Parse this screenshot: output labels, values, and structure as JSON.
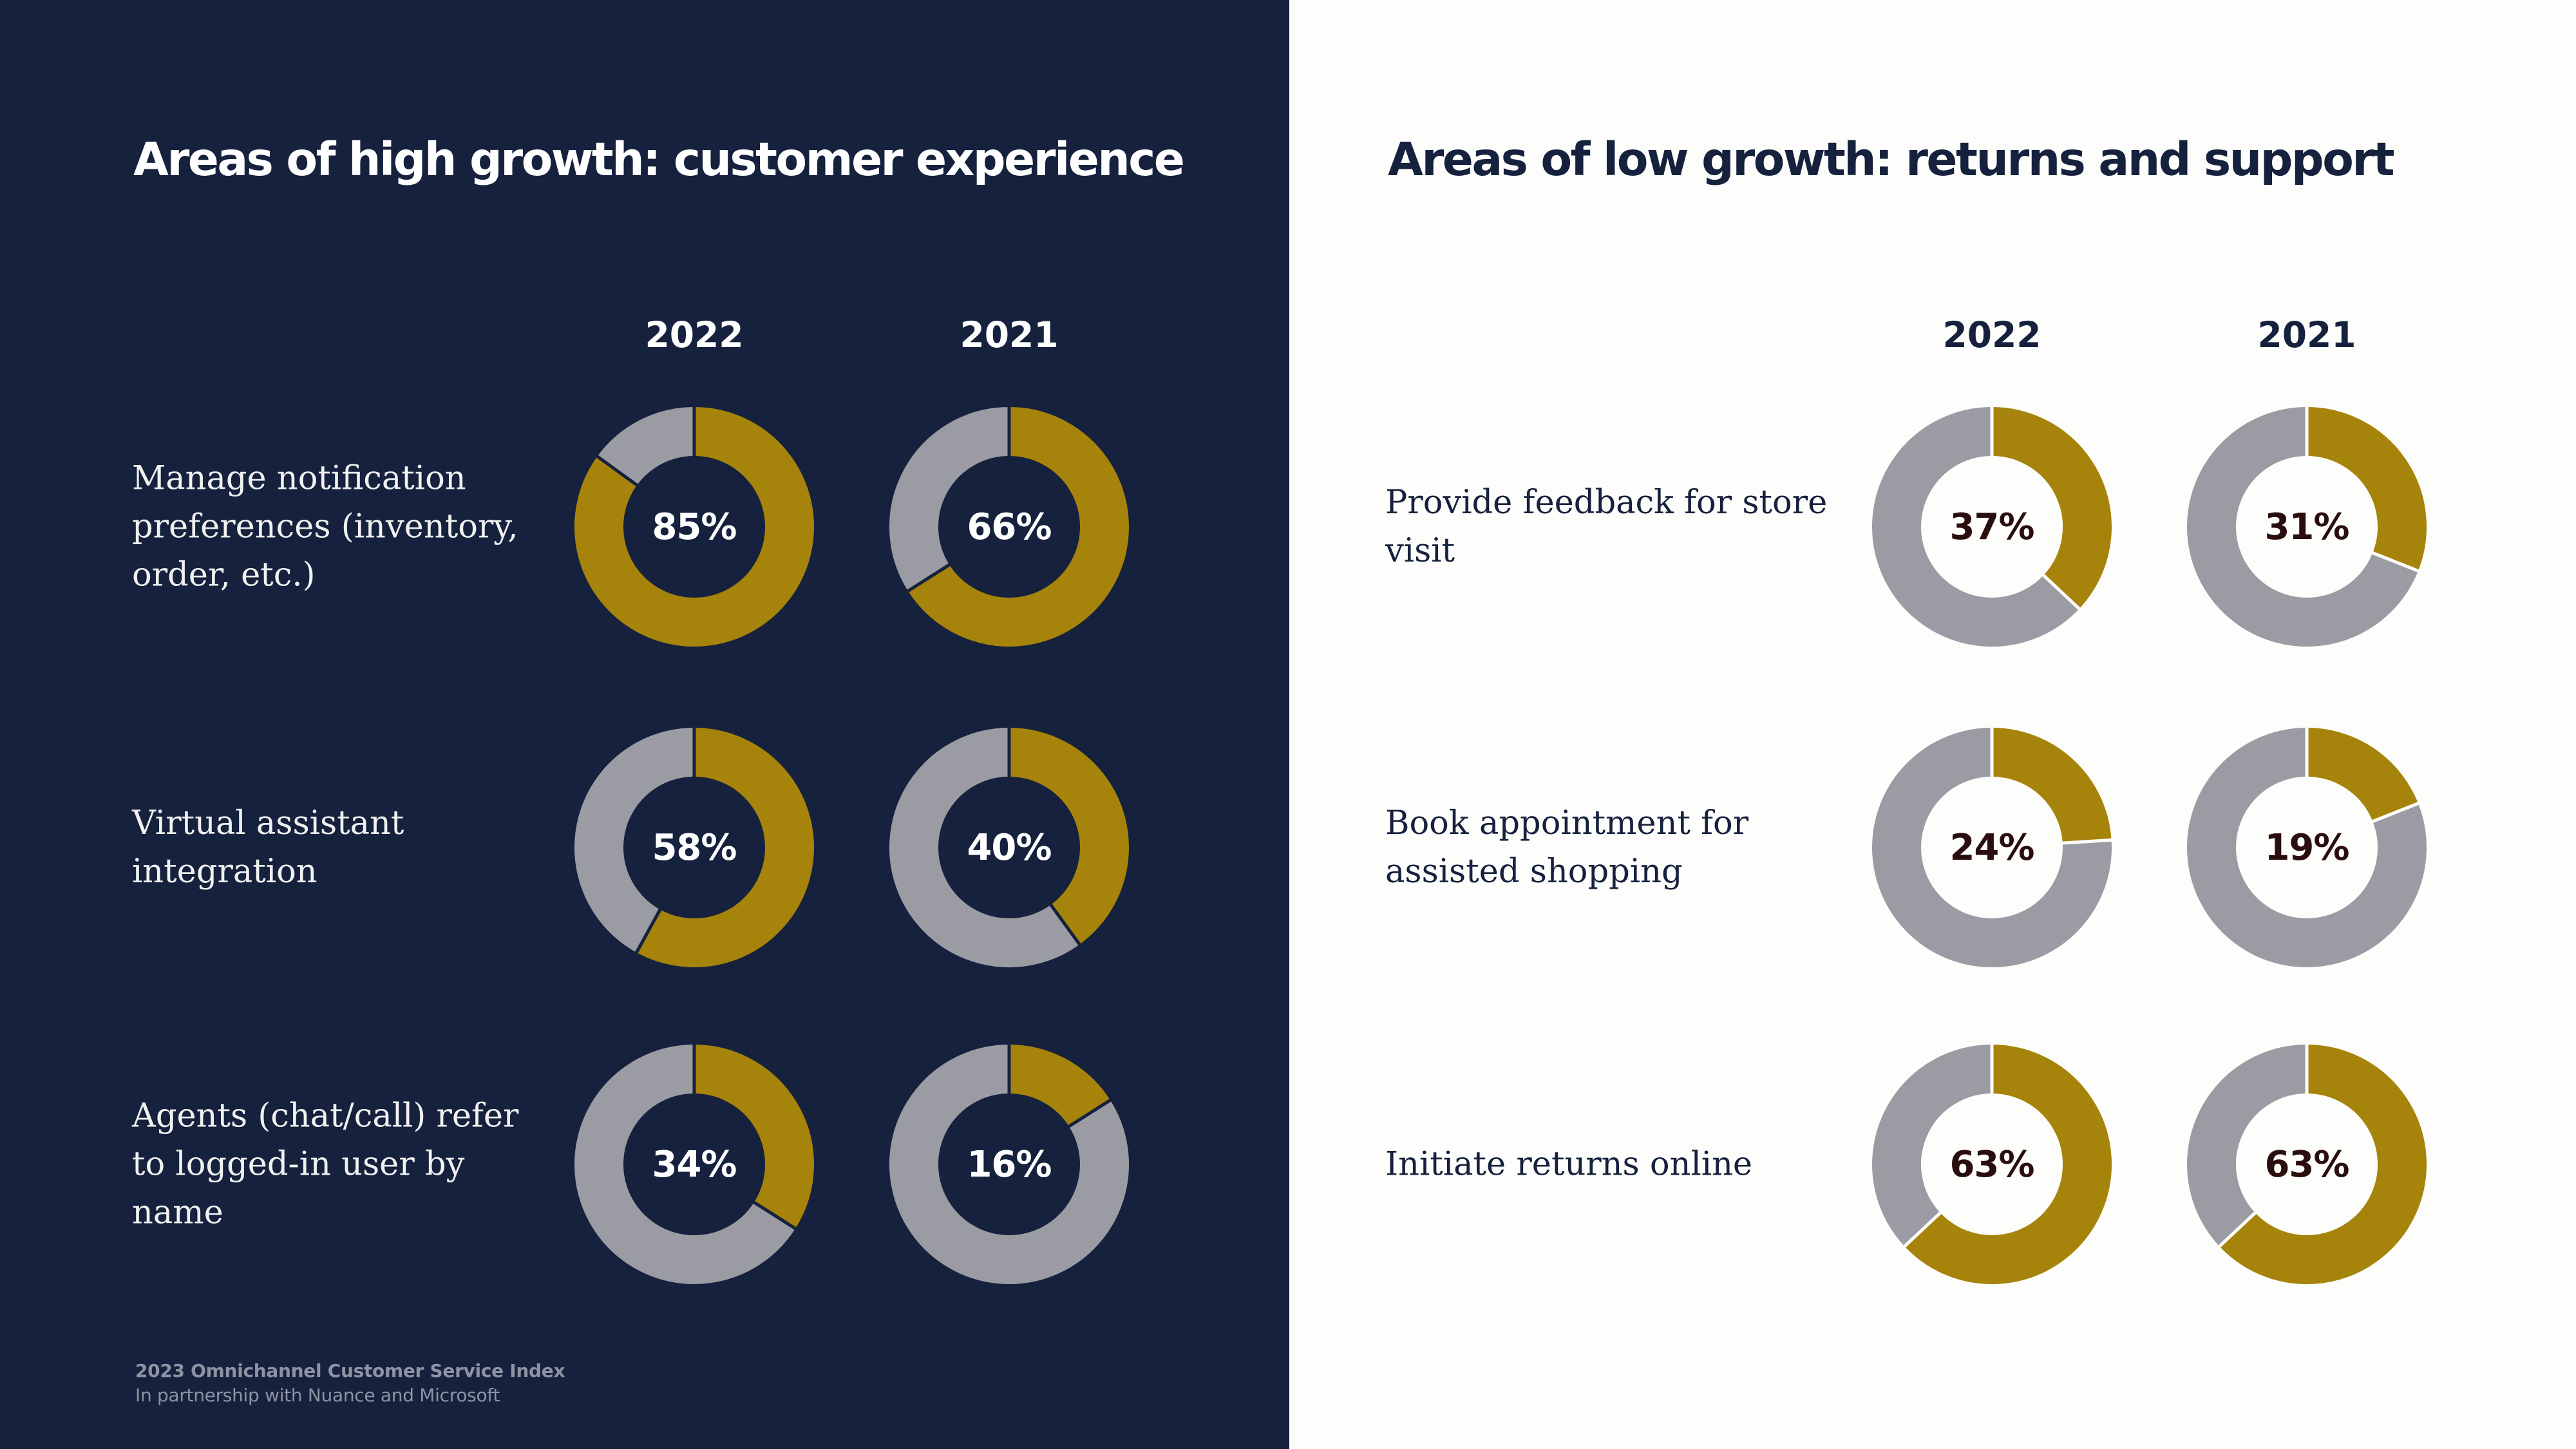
{
  "colors": {
    "left_background": "#15213d",
    "right_background": "#fdfdfb",
    "highlight": "#a6830a",
    "remainder": "#9b9ba3"
  },
  "footer": {
    "title": "2023 Omnichannel Customer Service Index",
    "subtitle": "In partnership with Nuance and Microsoft"
  },
  "chart_data": [
    {
      "type": "pie",
      "variant": "donut",
      "title": "Areas of high growth: customer experience",
      "columns": [
        "2022",
        "2021"
      ],
      "rows": [
        {
          "label_lines": [
            "Manage notification",
            "preferences (inventory,",
            "order, etc.)"
          ],
          "values": [
            85,
            66
          ],
          "display": [
            "85%",
            "66%"
          ]
        },
        {
          "label_lines": [
            "Virtual assistant",
            "integration"
          ],
          "values": [
            58,
            40
          ],
          "display": [
            "58%",
            "40%"
          ]
        },
        {
          "label_lines": [
            "Agents (chat/call) refer",
            "to logged-in user by",
            "name"
          ],
          "values": [
            34,
            16
          ],
          "display": [
            "34%",
            "16%"
          ]
        }
      ]
    },
    {
      "type": "pie",
      "variant": "donut",
      "title": "Areas of low growth: returns and support",
      "columns": [
        "2022",
        "2021"
      ],
      "rows": [
        {
          "label_lines": [
            "Provide feedback for store",
            "visit"
          ],
          "values": [
            37,
            31
          ],
          "display": [
            "37%",
            "31%"
          ]
        },
        {
          "label_lines": [
            "Book appointment for",
            "assisted shopping"
          ],
          "values": [
            24,
            19
          ],
          "display": [
            "24%",
            "19%"
          ]
        },
        {
          "label_lines": [
            "Initiate returns online"
          ],
          "values": [
            63,
            63
          ],
          "display": [
            "63%",
            "63%"
          ]
        }
      ]
    }
  ]
}
